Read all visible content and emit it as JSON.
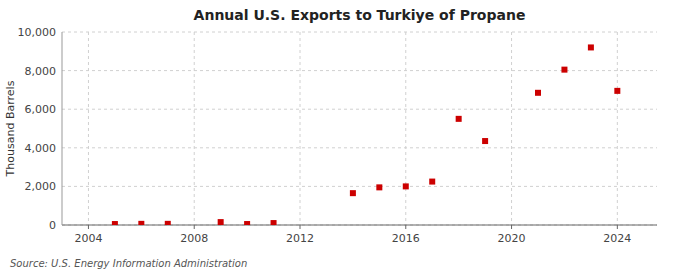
{
  "chart_data": {
    "type": "scatter",
    "title": "Annual U.S. Exports to Turkiye of Propane",
    "ylabel": "Thousand Barrels",
    "source": "Source: U.S. Energy Information Administration",
    "x": [
      2005,
      2006,
      2007,
      2009,
      2010,
      2011,
      2014,
      2015,
      2016,
      2017,
      2018,
      2019,
      2021,
      2022,
      2023,
      2024
    ],
    "values": [
      50,
      60,
      60,
      150,
      50,
      100,
      1650,
      1950,
      2000,
      2250,
      5500,
      4350,
      6850,
      8050,
      9200,
      6950
    ],
    "color": "#cc0000",
    "marker": "square",
    "xlim": [
      2003,
      2025.5
    ],
    "ylim": [
      0,
      10000
    ],
    "xticks": [
      2004,
      2008,
      2012,
      2016,
      2020,
      2024
    ],
    "yticks": [
      0,
      {
        "value": 2000,
        "label": "2,000"
      },
      {
        "value": 4000,
        "label": "4,000"
      },
      {
        "value": 6000,
        "label": "6,000"
      },
      {
        "value": 8000,
        "label": "8,000"
      },
      {
        "value": 10000,
        "label": "10,000"
      }
    ],
    "grid": true
  }
}
